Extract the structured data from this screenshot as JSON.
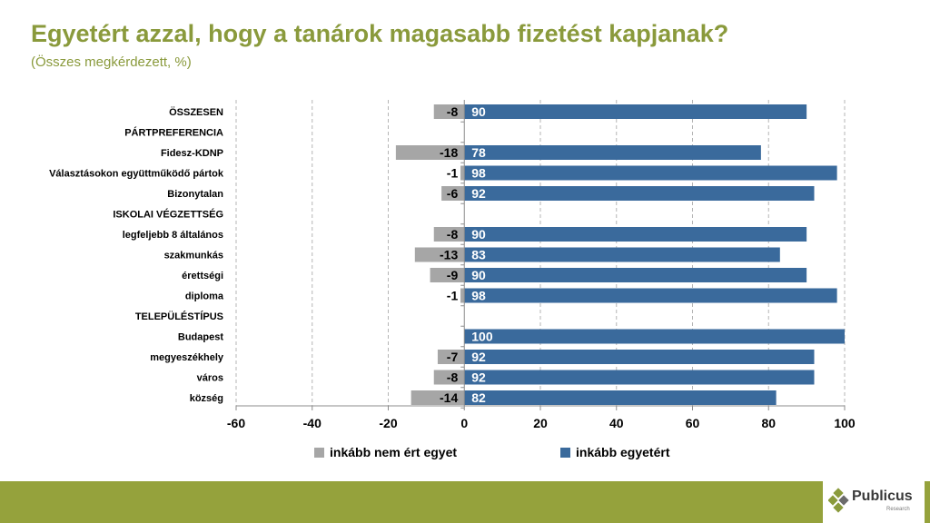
{
  "header": {
    "title": "Egyetért azzal, hogy a tanárok magasabb fizetést kapjanak?",
    "subtitle": "(Összes megkérdezett, %)"
  },
  "logo": {
    "name": "Publicus",
    "sub": "Research"
  },
  "colors": {
    "positive": "#3a6a9c",
    "negative": "#a6a6a6",
    "title": "#8a9a3c",
    "footer": "#95a23c"
  },
  "chart_data": {
    "type": "bar",
    "orientation": "horizontal",
    "stacked_diverging": true,
    "title": "",
    "xlabel": "",
    "ylabel": "",
    "xlim": [
      -60,
      100
    ],
    "xticks": [
      -60,
      -40,
      -20,
      0,
      20,
      40,
      60,
      80,
      100
    ],
    "grid": "vertical-dashed",
    "legend_position": "bottom",
    "categories": [
      "ÖSSZESEN",
      "PÁRTPREFERENCIA",
      "Fidesz-KDNP",
      "Választásokon együttműködő pártok",
      "Bizonytalan",
      "ISKOLAI VÉGZETTSÉG",
      "legfeljebb 8 általános",
      "szakmunkás",
      "érettségi",
      "diploma",
      "TELEPÜLÉSTÍPUS",
      "Budapest",
      "megyeszékhely",
      "város",
      "község"
    ],
    "series": [
      {
        "name": "inkább nem ért egyet",
        "values": [
          -8,
          null,
          -18,
          -1,
          -6,
          null,
          -8,
          -13,
          -9,
          -1,
          null,
          null,
          -7,
          -8,
          -14
        ]
      },
      {
        "name": "inkább egyetért",
        "values": [
          90,
          null,
          78,
          98,
          92,
          null,
          90,
          83,
          90,
          98,
          null,
          100,
          92,
          92,
          82
        ]
      }
    ]
  }
}
